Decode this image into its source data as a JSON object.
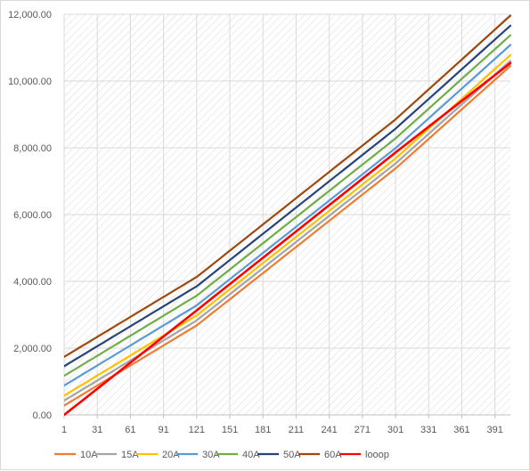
{
  "chart_data": {
    "type": "line",
    "title": "",
    "xlabel": "",
    "ylabel": "",
    "xlim": [
      1,
      405
    ],
    "ylim": [
      0,
      12000
    ],
    "x_ticks": [
      1,
      31,
      61,
      91,
      121,
      151,
      181,
      211,
      241,
      271,
      301,
      331,
      361,
      391
    ],
    "y_ticks": [
      0,
      2000,
      4000,
      6000,
      8000,
      10000,
      12000
    ],
    "y_tick_labels": [
      "0.00",
      "2,000.00",
      "4,000.00",
      "6,000.00",
      "8,000.00",
      "10,000.00",
      "12,000.00"
    ],
    "grid": "diagonal-hatch",
    "legend_position": "bottom",
    "series": [
      {
        "name": "10A",
        "color": "#ed7d31",
        "x": [
          1,
          121,
          301,
          405
        ],
        "y": [
          280,
          2680,
          7380,
          10450
        ]
      },
      {
        "name": "15A",
        "color": "#a5a5a5",
        "x": [
          1,
          121,
          301,
          405
        ],
        "y": [
          430,
          2830,
          7530,
          10600
        ]
      },
      {
        "name": "20A",
        "color": "#ffc000",
        "x": [
          1,
          121,
          301,
          405
        ],
        "y": [
          580,
          2980,
          7680,
          10780
        ]
      },
      {
        "name": "30A",
        "color": "#5b9bd5",
        "x": [
          1,
          121,
          301,
          405
        ],
        "y": [
          880,
          3280,
          7990,
          11080
        ]
      },
      {
        "name": "40A",
        "color": "#70ad47",
        "x": [
          1,
          121,
          301,
          405
        ],
        "y": [
          1170,
          3570,
          8280,
          11370
        ]
      },
      {
        "name": "50A",
        "color": "#264478",
        "x": [
          1,
          121,
          301,
          405
        ],
        "y": [
          1460,
          3850,
          8570,
          11660
        ]
      },
      {
        "name": "60A",
        "color": "#9e480e",
        "x": [
          1,
          121,
          301,
          405
        ],
        "y": [
          1740,
          4130,
          8850,
          11960
        ]
      },
      {
        "name": "looop",
        "color": "#ff0000",
        "x": [
          1,
          121,
          301,
          405
        ],
        "y": [
          0,
          3130,
          7860,
          10540
        ]
      }
    ]
  }
}
